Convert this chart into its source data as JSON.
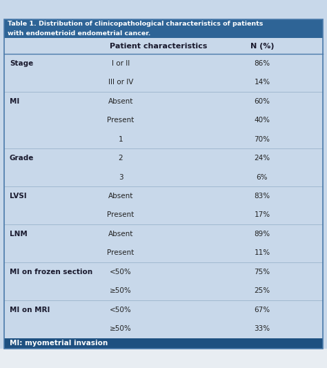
{
  "title_line1": "Table 1. Distribution of clinicopathological characteristics of patients",
  "title_line2": "with endometrioid endometrial cancer.",
  "header_col1": "Patient characteristics",
  "header_col2": "N (%)",
  "bg_color": "#c8d8ea",
  "title_bg": "#2e6496",
  "header_bg": "#c8d8ea",
  "footer_bg": "#1e5080",
  "footer_text": "MI: myometrial invasion",
  "footer_text_color": "#ffffff",
  "text_color": "#222222",
  "bold_color": "#1a1a2e",
  "title_text_color": "#ffffff",
  "border_color": "#4a7aaa",
  "divider_color": "#9ab4cc",
  "rows": [
    {
      "category": "Stage",
      "subcategory": "I or II",
      "value": "86%"
    },
    {
      "category": "",
      "subcategory": "III or IV",
      "value": "14%"
    },
    {
      "category": "MI",
      "subcategory": "Absent",
      "value": "60%"
    },
    {
      "category": "",
      "subcategory": "Present",
      "value": "40%"
    },
    {
      "category": "",
      "subcategory": "1",
      "value": "70%"
    },
    {
      "category": "Grade",
      "subcategory": "2",
      "value": "24%"
    },
    {
      "category": "",
      "subcategory": "3",
      "value": "6%"
    },
    {
      "category": "LVSI",
      "subcategory": "Absent",
      "value": "83%"
    },
    {
      "category": "",
      "subcategory": "Present",
      "value": "17%"
    },
    {
      "category": "LNM",
      "subcategory": "Absent",
      "value": "89%"
    },
    {
      "category": "",
      "subcategory": "Present",
      "value": "11%"
    },
    {
      "category": "MI on frozen section",
      "subcategory": "<50%",
      "value": "75%"
    },
    {
      "category": "",
      "subcategory": "≥50%",
      "value": "25%"
    },
    {
      "category": "MI on MRI",
      "subcategory": "<50%",
      "value": "67%"
    },
    {
      "category": "",
      "subcategory": "≥50%",
      "value": "33%"
    }
  ],
  "category_rows": [
    0,
    2,
    5,
    7,
    9,
    11,
    13
  ],
  "figsize": [
    4.74,
    5.33
  ],
  "dpi": 100
}
